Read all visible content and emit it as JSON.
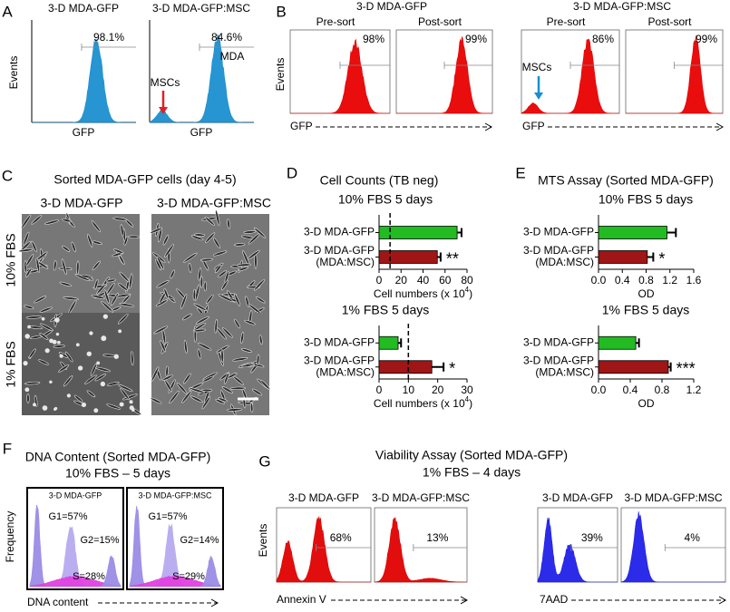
{
  "panels": {
    "A": {
      "letter": "A",
      "ylabel": "Events",
      "plots": [
        {
          "title": "3-D MDA-GFP",
          "percent": "98.1%",
          "xlabel": "GFP"
        },
        {
          "title": "3-D MDA-GFP:MSC",
          "percent": "84.6%",
          "xlabel": "GFP",
          "arrow_label": "MSCs",
          "peak_label": "MDA"
        }
      ]
    },
    "B": {
      "letter": "B",
      "ylabel": "Events",
      "xlabel_left": "GFP",
      "xlabel_right": "GFP",
      "groups": [
        {
          "title": "3-D MDA-GFP",
          "plots": [
            {
              "title": "Pre-sort",
              "percent": "98%"
            },
            {
              "title": "Post-sort",
              "percent": "99%"
            }
          ]
        },
        {
          "title": "3-D MDA-GFP:MSC",
          "arrow_label": "MSCs",
          "plots": [
            {
              "title": "Pre-sort",
              "percent": "86%"
            },
            {
              "title": "Post-sort",
              "percent": "99%"
            }
          ]
        }
      ]
    },
    "C": {
      "letter": "C",
      "title": "Sorted MDA-GFP cells (day 4-5)",
      "columns": [
        "3-D MDA-GFP",
        "3-D MDA-GFP:MSC"
      ],
      "rows": [
        "10% FBS",
        "1% FBS"
      ]
    },
    "D": {
      "letter": "D",
      "title": "Cell Counts (TB neg)"
    },
    "E": {
      "letter": "E",
      "title": "MTS Assay (Sorted MDA-GFP)"
    },
    "F": {
      "letter": "F",
      "title": "DNA Content (Sorted MDA-GFP)",
      "subtitle": "10% FBS – 5 days",
      "ylabel": "Frequency",
      "xlabel": "DNA content",
      "plots": [
        {
          "title": "3-D MDA-GFP",
          "g1": "G1=57%",
          "g2": "G2=15%",
          "s": "S=28%"
        },
        {
          "title": "3-D MDA-GFP:MSC",
          "g1": "G1=57%",
          "g2": "G2=14%",
          "s": "S=29%"
        }
      ]
    },
    "G": {
      "letter": "G",
      "title": "Viability Assay (Sorted MDA-GFP)",
      "subtitle": "1% FBS – 4 days",
      "ylabel": "Events",
      "xlabel_left": "Annexin V",
      "xlabel_right": "7AAD",
      "plots": [
        {
          "title": "3-D MDA-GFP",
          "percent": "68%"
        },
        {
          "title": "3-D MDA-GFP:MSC",
          "percent": "13%"
        },
        {
          "title": "3-D MDA-GFP",
          "percent": "39%"
        },
        {
          "title": "3-D MDA-GFP:MSC",
          "percent": "4%"
        }
      ]
    }
  },
  "chart_data": [
    {
      "type": "bar",
      "title": "10% FBS 5 days",
      "categories": [
        "3-D MDA-GFP",
        "3-D MDA-GFP\n(MDA:MSC)"
      ],
      "values": [
        71,
        53
      ],
      "errors": [
        4,
        3
      ],
      "colors": [
        "#22bb22",
        "#a01515"
      ],
      "ref_line": 10,
      "significance": "**",
      "xlim": [
        0,
        80
      ],
      "xticks": [
        0,
        20,
        40,
        60,
        80
      ],
      "xlabel": "Cell numbers (x 10",
      "xlabel_sup": "4",
      "xlabel_end": ")"
    },
    {
      "type": "bar",
      "title": "1% FBS 5 days",
      "categories": [
        "3-D MDA-GFP",
        "3-D MDA-GFP\n(MDA:MSC)"
      ],
      "values": [
        6.5,
        18
      ],
      "errors": [
        1,
        4
      ],
      "colors": [
        "#22bb22",
        "#a01515"
      ],
      "ref_line": 10,
      "significance": "*",
      "xlim": [
        0,
        30
      ],
      "xticks": [
        0,
        10,
        20,
        30
      ],
      "xlabel": "Cell numbers (x 10",
      "xlabel_sup": "4",
      "xlabel_end": ")"
    },
    {
      "type": "bar",
      "title": "10% FBS 5 days",
      "categories": [
        "3-D MDA-GFP",
        "3-D MDA-GFP\n(MDA:MSC)"
      ],
      "values": [
        1.15,
        0.82
      ],
      "errors": [
        0.15,
        0.1
      ],
      "colors": [
        "#22bb22",
        "#a01515"
      ],
      "significance": "*",
      "xlim": [
        0,
        1.6
      ],
      "xticks": [
        {
          "value": 0,
          "label": "0.0"
        },
        0.4,
        0.8,
        1.2,
        1.6
      ],
      "xlabel": "OD"
    },
    {
      "type": "bar",
      "title": "1% FBS 5 days",
      "categories": [
        "3-D MDA-GFP",
        "3-D MDA-GFP\n(MDA:MSC)"
      ],
      "values": [
        0.47,
        0.88
      ],
      "errors": [
        0.04,
        0.03
      ],
      "colors": [
        "#22bb22",
        "#a01515"
      ],
      "significance": "***",
      "xlim": [
        0,
        1.2
      ],
      "xticks": [
        {
          "value": 0,
          "label": "0.0"
        },
        0.4,
        0.8,
        1.2
      ],
      "xlabel": "OD"
    }
  ]
}
